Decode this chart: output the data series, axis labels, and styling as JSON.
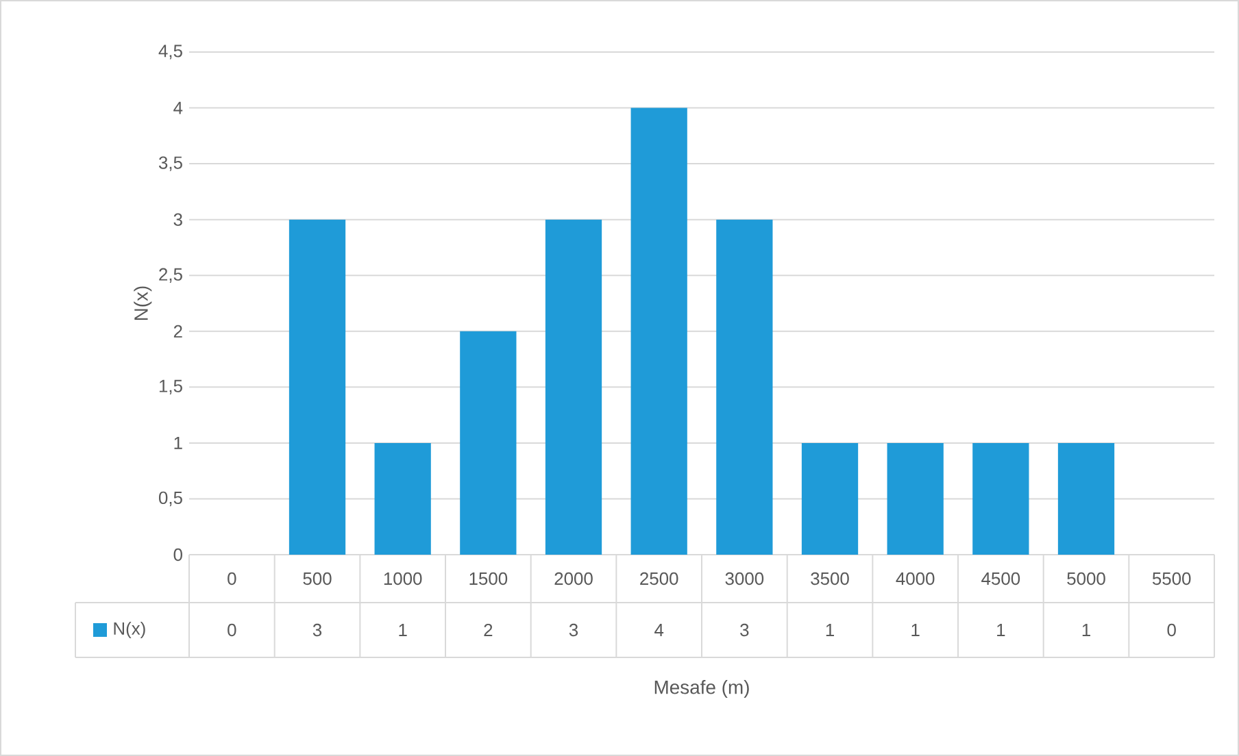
{
  "chart_data": {
    "type": "bar",
    "xlabel": "Mesafe (m)",
    "ylabel": "N(x)",
    "categories": [
      "0",
      "500",
      "1000",
      "1500",
      "2000",
      "2500",
      "3000",
      "3500",
      "4000",
      "4500",
      "5000",
      "5500"
    ],
    "series": [
      {
        "name": "N(x)",
        "color": "#1f9bd8",
        "values": [
          0,
          3,
          1,
          2,
          3,
          4,
          3,
          1,
          1,
          1,
          1,
          0
        ]
      }
    ],
    "ylim": [
      0,
      4.5
    ],
    "yticks": [
      0,
      {
        "value": 0.5,
        "label": "0,5"
      },
      1,
      {
        "value": 1.5,
        "label": "1,5"
      },
      2,
      {
        "value": 2.5,
        "label": "2,5"
      },
      3,
      {
        "value": 3.5,
        "label": "3,5"
      },
      4,
      {
        "value": 4.5,
        "label": "4,5"
      }
    ],
    "grid": "y",
    "legend": "bottom",
    "data_labels": true
  }
}
